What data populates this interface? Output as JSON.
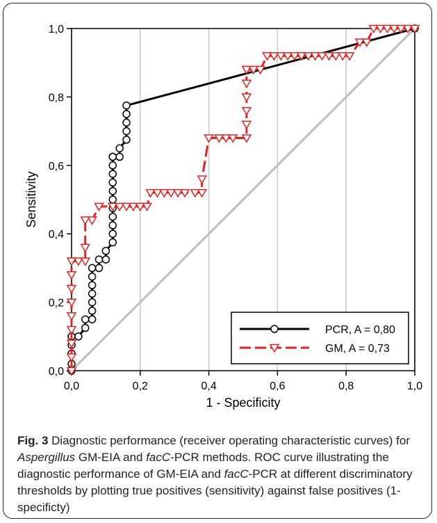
{
  "chart_data": {
    "type": "line",
    "xlabel": "1 - Specificity",
    "ylabel": "Sensitivity",
    "xlim": [
      0,
      1
    ],
    "ylim": [
      0,
      1
    ],
    "xticks": [
      "0,0",
      "0,2",
      "0,4",
      "0,6",
      "0,8",
      "1,0"
    ],
    "yticks": [
      "0,0",
      "0,2",
      "0,4",
      "0,6",
      "0,8",
      "1,0"
    ],
    "grid": "vertical",
    "legend_position": "bottom-right",
    "reference_line": {
      "x": [
        0,
        1
      ],
      "y": [
        0,
        1
      ],
      "color": "#bdbdbd"
    },
    "series": [
      {
        "name": "PCR, A = 0,80",
        "color": "#000000",
        "marker": "circle",
        "line_style": "solid",
        "x": [
          0,
          0,
          0,
          0,
          0,
          0,
          0.02,
          0.04,
          0.04,
          0.06,
          0.06,
          0.06,
          0.06,
          0.06,
          0.06,
          0.06,
          0.08,
          0.08,
          0.1,
          0.1,
          0.12,
          0.12,
          0.12,
          0.12,
          0.12,
          0.12,
          0.12,
          0.12,
          0.12,
          0.12,
          0.12,
          0.12,
          0.12,
          0.12,
          0.14,
          0.14,
          0.16,
          0.16,
          0.16,
          0.16,
          0.16,
          1.0
        ],
        "y": [
          0,
          0.02,
          0.05,
          0.075,
          0.1,
          0.1,
          0.1,
          0.125,
          0.15,
          0.15,
          0.175,
          0.2,
          0.225,
          0.25,
          0.275,
          0.3,
          0.3,
          0.325,
          0.325,
          0.35,
          0.375,
          0.4,
          0.425,
          0.45,
          0.475,
          0.5,
          0.525,
          0.55,
          0.575,
          0.6,
          0.625,
          0.625,
          0.625,
          0.625,
          0.625,
          0.65,
          0.675,
          0.7,
          0.725,
          0.75,
          0.775,
          1.0
        ]
      },
      {
        "name": "GM, A = 0,73",
        "color": "#e8201e",
        "marker": "triangle-down",
        "line_style": "dashed",
        "x": [
          0,
          0,
          0,
          0,
          0,
          0,
          0,
          0,
          0,
          0.02,
          0.04,
          0.04,
          0.04,
          0.06,
          0.08,
          0.12,
          0.14,
          0.16,
          0.18,
          0.2,
          0.22,
          0.23,
          0.25,
          0.27,
          0.29,
          0.31,
          0.33,
          0.36,
          0.38,
          0.38,
          0.4,
          0.43,
          0.45,
          0.47,
          0.51,
          0.51,
          0.51,
          0.51,
          0.51,
          0.51,
          0.51,
          0.53,
          0.55,
          0.57,
          0.59,
          0.61,
          0.63,
          0.65,
          0.67,
          0.69,
          0.71,
          0.73,
          0.75,
          0.77,
          0.79,
          0.81,
          0.84,
          0.86,
          0.88,
          0.9,
          0.92,
          0.94,
          0.96,
          0.98,
          1.0
        ],
        "y": [
          0,
          0.04,
          0.08,
          0.12,
          0.16,
          0.2,
          0.24,
          0.28,
          0.32,
          0.32,
          0.32,
          0.36,
          0.44,
          0.44,
          0.48,
          0.48,
          0.48,
          0.48,
          0.48,
          0.48,
          0.48,
          0.52,
          0.52,
          0.52,
          0.52,
          0.52,
          0.52,
          0.52,
          0.52,
          0.56,
          0.68,
          0.68,
          0.68,
          0.68,
          0.68,
          0.72,
          0.76,
          0.8,
          0.84,
          0.88,
          0.88,
          0.88,
          0.88,
          0.92,
          0.92,
          0.92,
          0.92,
          0.92,
          0.92,
          0.92,
          0.92,
          0.92,
          0.92,
          0.92,
          0.92,
          0.92,
          0.96,
          0.96,
          1.0,
          1.0,
          1.0,
          1.0,
          1.0,
          1.0,
          1.0
        ]
      }
    ]
  },
  "caption": {
    "figure_label": "Fig. 3",
    "segments": [
      {
        "text": " Diagnostic performance (receiver operating characteristic curves) for ",
        "italic": false
      },
      {
        "text": "Aspergillus",
        "italic": true
      },
      {
        "text": " GM-EIA and ",
        "italic": false
      },
      {
        "text": "facC",
        "italic": true
      },
      {
        "text": "-PCR methods. ROC curve illustrating the diagnostic performance of GM-EIA and ",
        "italic": false
      },
      {
        "text": "facC",
        "italic": true
      },
      {
        "text": "-PCR at different discriminatory thresholds by plotting true positives (sensitivity) against false positives (1-specificty)",
        "italic": false
      }
    ]
  }
}
